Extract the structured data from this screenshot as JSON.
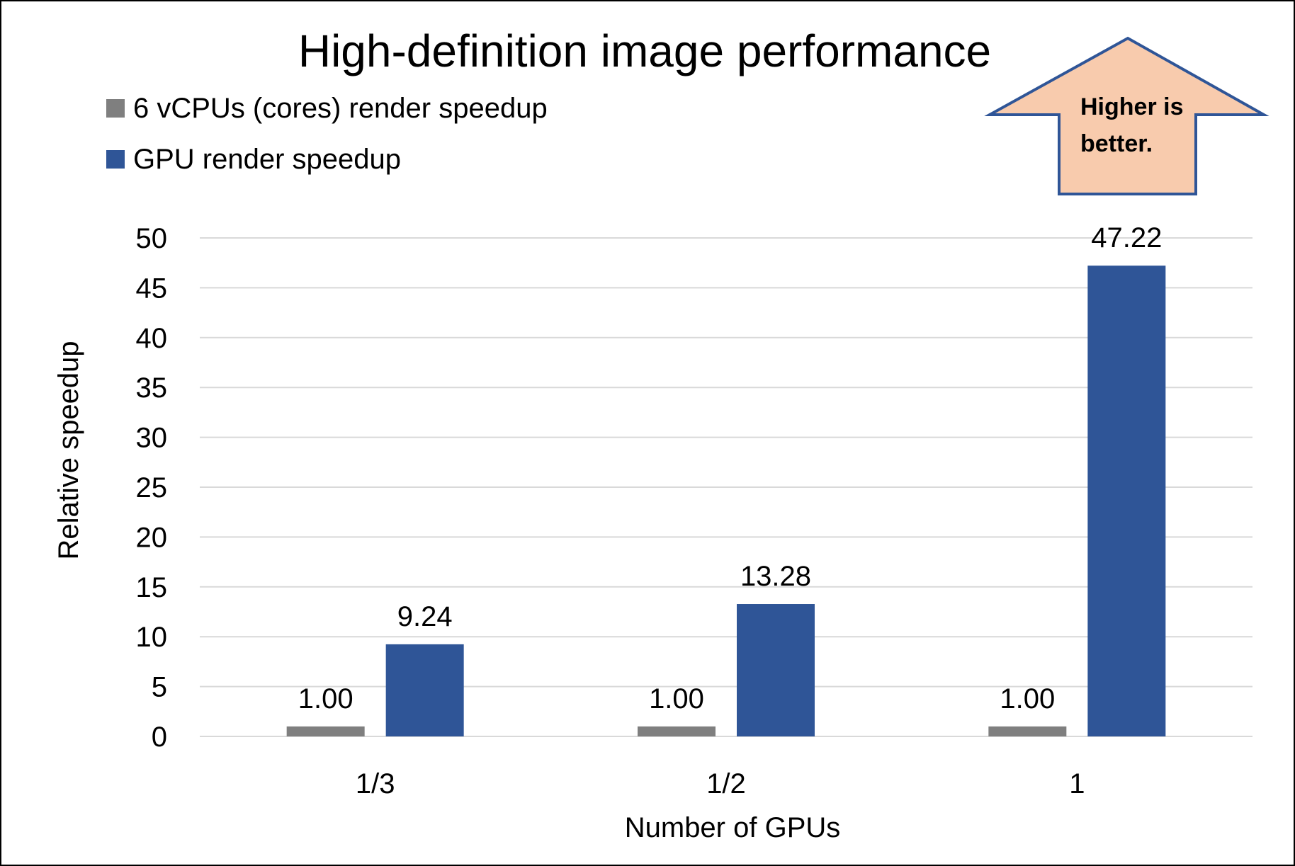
{
  "chart_data": {
    "type": "bar",
    "title": "High-definition image performance",
    "xlabel": "Number of GPUs",
    "ylabel": "Relative speedup",
    "categories": [
      "1/3",
      "1/2",
      "1"
    ],
    "series": [
      {
        "name": "6 vCPUs (cores) render speedup",
        "color": "#7f7f7f",
        "values": [
          1.0,
          1.0,
          1.0
        ],
        "labels": [
          "1.00",
          "1.00",
          "1.00"
        ]
      },
      {
        "name": "GPU render speedup",
        "color": "#2f5597",
        "values": [
          9.24,
          13.28,
          47.22
        ],
        "labels": [
          "9.24",
          "13.28",
          "47.22"
        ]
      }
    ],
    "ylim": [
      0,
      50
    ],
    "yticks": [
      0,
      5,
      10,
      15,
      20,
      25,
      30,
      35,
      40,
      45,
      50
    ],
    "grid": true,
    "legend": "top-left",
    "annotation": {
      "text_lines": [
        "Higher is",
        "better."
      ],
      "shape": "up-arrow",
      "fill": "#f8cbad",
      "stroke": "#2f5597"
    }
  }
}
